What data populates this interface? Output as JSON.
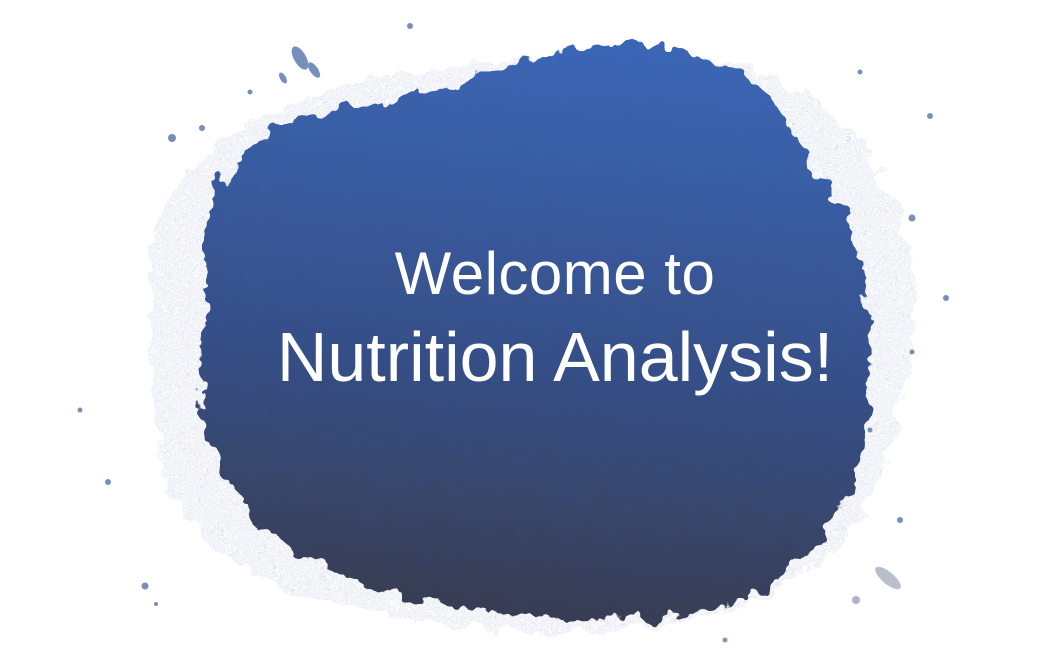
{
  "slide": {
    "title_line1": "Welcome to",
    "title_line2": "Nutrition Analysis!"
  },
  "colors": {
    "paint_top": "#3a64b2",
    "paint_bottom": "#383d55",
    "speckle": "#5472ad",
    "text": "#ffffff",
    "background": "#ffffff"
  },
  "icons": {
    "decoration": "paint-splash"
  }
}
